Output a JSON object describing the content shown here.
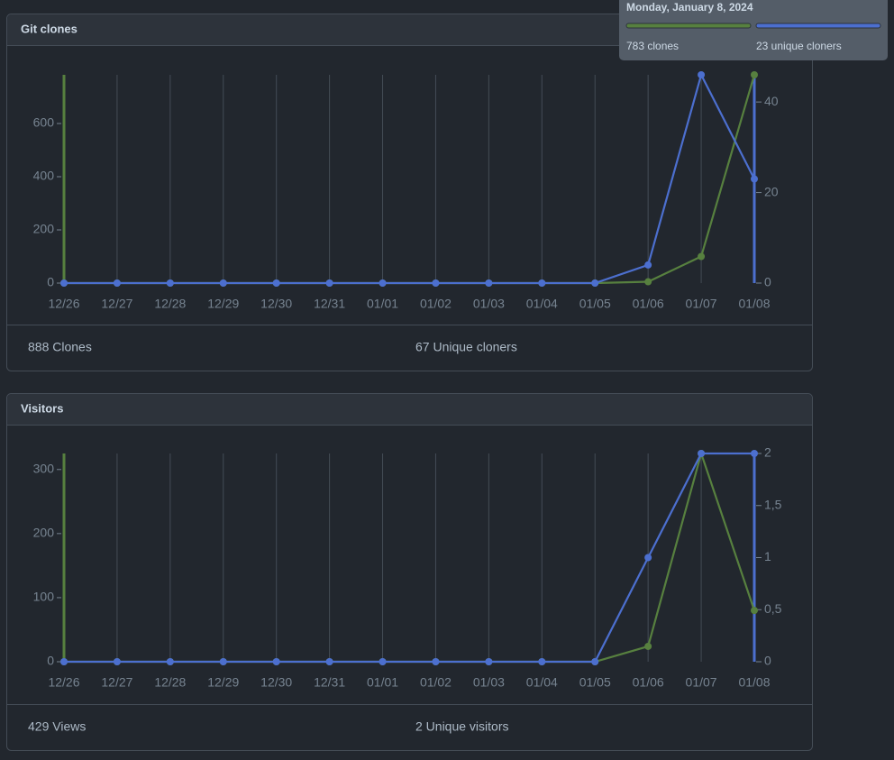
{
  "chart_data": [
    {
      "type": "line",
      "title": "Git clones",
      "categories": [
        "12/26",
        "12/27",
        "12/28",
        "12/29",
        "12/30",
        "12/31",
        "01/01",
        "01/02",
        "01/03",
        "01/04",
        "01/05",
        "01/06",
        "01/07",
        "01/08"
      ],
      "series": [
        {
          "color": "#57803f",
          "values": [
            0,
            0,
            0,
            0,
            0,
            0,
            0,
            0,
            0,
            0,
            0,
            5,
            100,
            783
          ]
        },
        {
          "color": "#4c6fcf",
          "axis": "y2",
          "values": [
            0,
            0,
            0,
            0,
            0,
            0,
            0,
            0,
            0,
            0,
            0,
            4,
            46,
            23
          ]
        }
      ],
      "ylim": [
        0,
        783
      ],
      "yticks": [
        0,
        200,
        400,
        600
      ],
      "y2lim": [
        0,
        46
      ],
      "y2ticks": [
        0,
        20,
        40
      ],
      "footer": [
        "888 Clones",
        "67 Unique cloners"
      ],
      "tooltip": {
        "title": "Monday, January 8, 2024",
        "items": [
          "783 clones",
          "23 unique cloners"
        ]
      }
    },
    {
      "type": "line",
      "title": "Visitors",
      "categories": [
        "12/26",
        "12/27",
        "12/28",
        "12/29",
        "12/30",
        "12/31",
        "01/01",
        "01/02",
        "01/03",
        "01/04",
        "01/05",
        "01/06",
        "01/07",
        "01/08"
      ],
      "series": [
        {
          "color": "#57803f",
          "values": [
            0,
            0,
            0,
            0,
            0,
            0,
            0,
            0,
            0,
            0,
            0,
            24,
            325,
            80
          ]
        },
        {
          "color": "#4c6fcf",
          "axis": "y2",
          "values": [
            0,
            0,
            0,
            0,
            0,
            0,
            0,
            0,
            0,
            0,
            0,
            1,
            2,
            2
          ]
        }
      ],
      "ylim": [
        0,
        325
      ],
      "yticks": [
        0,
        100,
        200,
        300
      ],
      "y2lim": [
        0,
        2
      ],
      "y2ticks": [
        0,
        {
          "value": 0.5,
          "label": "0,5"
        },
        1,
        {
          "value": 1.5,
          "label": "1,5"
        },
        2
      ],
      "footer": [
        "429 Views",
        "2 Unique visitors"
      ]
    }
  ]
}
